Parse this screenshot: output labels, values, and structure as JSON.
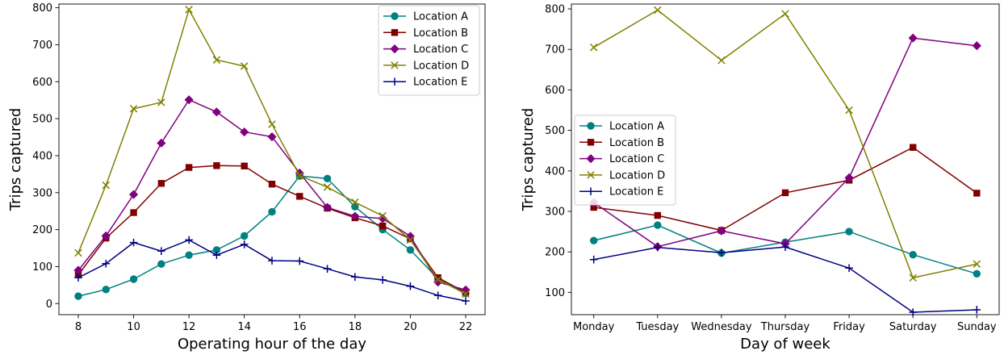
{
  "chart_data": [
    {
      "type": "line",
      "xlabel": "Operating hour of the day",
      "ylabel": "Trips captured",
      "x": [
        8,
        9,
        10,
        11,
        12,
        13,
        14,
        15,
        16,
        17,
        18,
        19,
        20,
        21,
        22
      ],
      "xlim": [
        7.3,
        22.7
      ],
      "ylim": [
        -30,
        810
      ],
      "xticks": [
        "8",
        "10",
        "12",
        "14",
        "16",
        "18",
        "20",
        "22"
      ],
      "xtick_values": [
        8,
        10,
        12,
        14,
        16,
        18,
        20,
        22
      ],
      "yticks": [
        "0",
        "100",
        "200",
        "300",
        "400",
        "500",
        "600",
        "700",
        "800"
      ],
      "ytick_values": [
        0,
        100,
        200,
        300,
        400,
        500,
        600,
        700,
        800
      ],
      "legend_position": "top-right",
      "series": [
        {
          "name": "Location A",
          "color": "#008080",
          "marker": "circle",
          "values": [
            20,
            38,
            66,
            107,
            131,
            145,
            183,
            248,
            345,
            338,
            262,
            200,
            145,
            67,
            28
          ]
        },
        {
          "name": "Location B",
          "color": "#800000",
          "marker": "square",
          "values": [
            78,
            177,
            246,
            325,
            368,
            373,
            372,
            323,
            290,
            258,
            232,
            210,
            175,
            70,
            30
          ]
        },
        {
          "name": "Location C",
          "color": "#800080",
          "marker": "diamond",
          "values": [
            90,
            183,
            295,
            434,
            551,
            518,
            464,
            451,
            353,
            260,
            236,
            230,
            182,
            58,
            37
          ]
        },
        {
          "name": "Location D",
          "color": "#808000",
          "marker": "x",
          "values": [
            137,
            320,
            527,
            544,
            795,
            659,
            642,
            485,
            346,
            315,
            274,
            237,
            172,
            65,
            26
          ]
        },
        {
          "name": "Location E",
          "color": "#000080",
          "marker": "plus",
          "values": [
            70,
            108,
            165,
            142,
            172,
            131,
            160,
            116,
            115,
            94,
            72,
            64,
            47,
            22,
            7
          ]
        }
      ]
    },
    {
      "type": "line",
      "xlabel": "Day of week",
      "ylabel": "Trips captured",
      "categories": [
        "Monday",
        "Tuesday",
        "Wednesday",
        "Thursday",
        "Friday",
        "Saturday",
        "Sunday"
      ],
      "ylim": [
        45,
        812
      ],
      "yticks": [
        "100",
        "200",
        "300",
        "400",
        "500",
        "600",
        "700",
        "800"
      ],
      "ytick_values": [
        100,
        200,
        300,
        400,
        500,
        600,
        700,
        800
      ],
      "legend_position": "center-left",
      "series": [
        {
          "name": "Location A",
          "color": "#008080",
          "marker": "circle",
          "values": [
            228,
            266,
            197,
            224,
            250,
            193,
            146
          ]
        },
        {
          "name": "Location B",
          "color": "#800000",
          "marker": "square",
          "values": [
            310,
            290,
            253,
            346,
            377,
            458,
            345
          ]
        },
        {
          "name": "Location C",
          "color": "#800080",
          "marker": "diamond",
          "values": [
            322,
            213,
            252,
            220,
            383,
            728,
            709
          ]
        },
        {
          "name": "Location D",
          "color": "#808000",
          "marker": "x",
          "values": [
            705,
            797,
            673,
            788,
            550,
            136,
            170
          ]
        },
        {
          "name": "Location E",
          "color": "#000080",
          "marker": "plus",
          "values": [
            181,
            211,
            198,
            212,
            160,
            51,
            57
          ]
        }
      ]
    }
  ]
}
